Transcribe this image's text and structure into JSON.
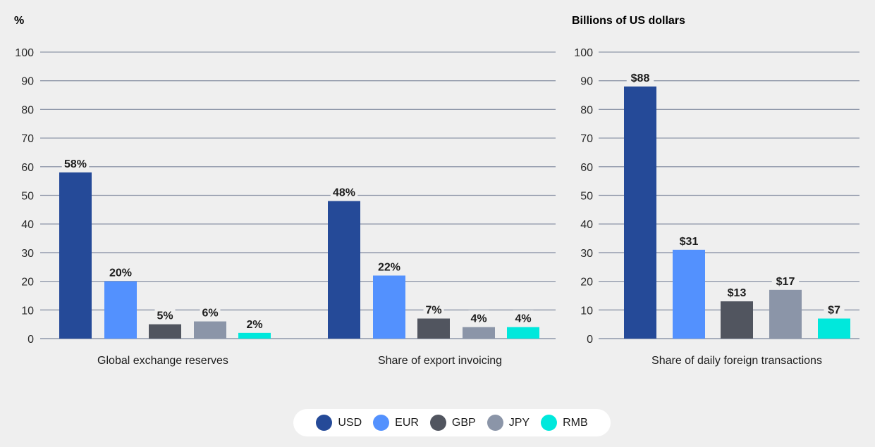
{
  "chart_data": [
    {
      "type": "bar",
      "title": "",
      "ylabel": "%",
      "ylim": [
        0,
        100
      ],
      "yticks": [
        0,
        10,
        20,
        30,
        40,
        50,
        60,
        70,
        80,
        90,
        100
      ],
      "grid": true,
      "categories": [
        "Global exchange reserves",
        "Share of export invoicing"
      ],
      "series": [
        {
          "name": "USD",
          "values": [
            58,
            48
          ],
          "labels": [
            "58%",
            "48%"
          ]
        },
        {
          "name": "EUR",
          "values": [
            20,
            22
          ],
          "labels": [
            "20%",
            "22%"
          ]
        },
        {
          "name": "GBP",
          "values": [
            5,
            7
          ],
          "labels": [
            "5%",
            "7%"
          ]
        },
        {
          "name": "JPY",
          "values": [
            6,
            4
          ],
          "labels": [
            "6%",
            "4%"
          ]
        },
        {
          "name": "RMB",
          "values": [
            2,
            4
          ],
          "labels": [
            "2%",
            "4%"
          ]
        }
      ]
    },
    {
      "type": "bar",
      "title": "",
      "ylabel": "Billions of US dollars",
      "ylim": [
        0,
        100
      ],
      "yticks": [
        0,
        10,
        20,
        30,
        40,
        50,
        60,
        70,
        80,
        90,
        100
      ],
      "grid": true,
      "categories": [
        "Share of daily foreign transactions"
      ],
      "series": [
        {
          "name": "USD",
          "values": [
            88
          ],
          "labels": [
            "$88"
          ]
        },
        {
          "name": "EUR",
          "values": [
            31
          ],
          "labels": [
            "$31"
          ]
        },
        {
          "name": "GBP",
          "values": [
            13
          ],
          "labels": [
            "$13"
          ]
        },
        {
          "name": "JPY",
          "values": [
            17
          ],
          "labels": [
            "$17"
          ]
        },
        {
          "name": "RMB",
          "values": [
            7
          ],
          "labels": [
            "$7"
          ]
        }
      ]
    }
  ],
  "legend": {
    "placement": "bottom-center",
    "items": [
      {
        "label": "USD",
        "color": "#254a98"
      },
      {
        "label": "EUR",
        "color": "#5391fe"
      },
      {
        "label": "GBP",
        "color": "#51555f"
      },
      {
        "label": "JPY",
        "color": "#8b95a8"
      },
      {
        "label": "RMB",
        "color": "#00e8dc"
      }
    ]
  },
  "colors": {
    "grid": "#8e96a8",
    "background": "#efefef"
  }
}
